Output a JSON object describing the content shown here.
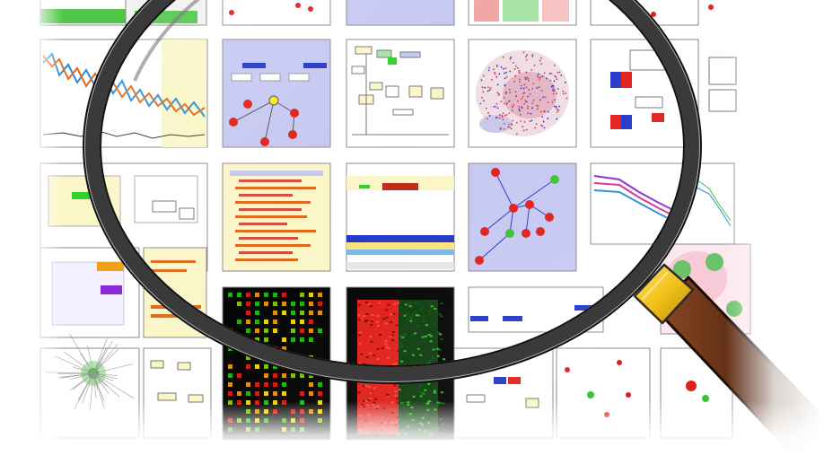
{
  "illustration": {
    "subject": "magnifier-over-visualization-grid",
    "icon": "magnifying-glass-icon"
  },
  "colors": {
    "background": "#ffffff",
    "thumbnail_border": "#8a8a8a",
    "lavender_panel": "#c6c8f2",
    "cream_panel": "#fbf6c8",
    "heatmap_black": "#050505",
    "heatmap_red": "#e0201a",
    "heatmap_green": "#27c21f",
    "node_red": "#e0201a",
    "node_green": "#3bc23a",
    "lens_rim": "#2e2e2e",
    "lens_ferrule": "#f2c21a",
    "handle_brown": "#6b3217"
  },
  "thumbnails": [
    {
      "name": "thumb-table-top",
      "kind": "table"
    },
    {
      "name": "thumb-network-small-top",
      "kind": "network"
    },
    {
      "name": "thumb-lavender-top",
      "kind": "panel"
    },
    {
      "name": "thumb-heatmap-top",
      "kind": "heatmap"
    },
    {
      "name": "thumb-network-topright",
      "kind": "network"
    },
    {
      "name": "thumb-timeseries",
      "kind": "line-chart"
    },
    {
      "name": "thumb-pathway-lavender",
      "kind": "pathway"
    },
    {
      "name": "thumb-flow-diagram",
      "kind": "diagram"
    },
    {
      "name": "thumb-scatter-cloud",
      "kind": "scatter"
    },
    {
      "name": "thumb-bar-diagram",
      "kind": "diagram"
    },
    {
      "name": "thumb-node-graph",
      "kind": "network"
    },
    {
      "name": "thumb-text-table",
      "kind": "table"
    },
    {
      "name": "thumb-track-view",
      "kind": "tracks"
    },
    {
      "name": "thumb-red-network",
      "kind": "network"
    },
    {
      "name": "thumb-line-profiles",
      "kind": "line-chart"
    },
    {
      "name": "thumb-dot-heatmap",
      "kind": "heatmap"
    },
    {
      "name": "thumb-rg-heatmap",
      "kind": "heatmap"
    },
    {
      "name": "thumb-cell-diagram",
      "kind": "diagram"
    },
    {
      "name": "thumb-hairball",
      "kind": "network"
    }
  ]
}
